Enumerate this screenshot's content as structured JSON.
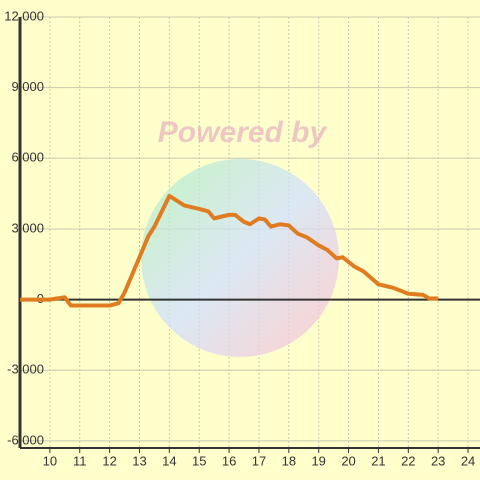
{
  "watermark": "Powered by",
  "chart_data": {
    "type": "line",
    "x": [
      9,
      10,
      10.5,
      10.7,
      11,
      12,
      12.3,
      12.5,
      13,
      13.3,
      13.5,
      14,
      14.5,
      15,
      15.3,
      15.5,
      16,
      16.2,
      16.5,
      16.7,
      17,
      17.2,
      17.4,
      17.7,
      18,
      18.3,
      18.6,
      19,
      19.3,
      19.6,
      19.8,
      20.2,
      20.5,
      21,
      21.5,
      22,
      22.5,
      22.7,
      23
    ],
    "series": [
      {
        "color": "#e07b20",
        "values": [
          0,
          0,
          100,
          -250,
          -250,
          -250,
          -150,
          300,
          1800,
          2700,
          3100,
          4400,
          4000,
          3850,
          3750,
          3450,
          3600,
          3600,
          3300,
          3200,
          3450,
          3400,
          3100,
          3200,
          3150,
          2800,
          2650,
          2300,
          2100,
          1750,
          1800,
          1400,
          1200,
          650,
          500,
          250,
          200,
          50,
          50
        ]
      }
    ],
    "xlim": [
      9,
      24.4
    ],
    "xticks": [
      10,
      11,
      12,
      13,
      14,
      15,
      16,
      17,
      18,
      19,
      20,
      21,
      22,
      23,
      24
    ],
    "ylim": [
      -6300,
      12000
    ],
    "yticks": [
      {
        "value": 12000,
        "label": "12,000"
      },
      {
        "value": 9000,
        "label": "9,000"
      },
      {
        "value": 6000,
        "label": "6,000"
      },
      {
        "value": 3000,
        "label": "3,000"
      },
      0,
      {
        "value": -3000,
        "label": "-3,000"
      },
      {
        "value": -6000,
        "label": "-6,000"
      }
    ],
    "grid": true
  }
}
